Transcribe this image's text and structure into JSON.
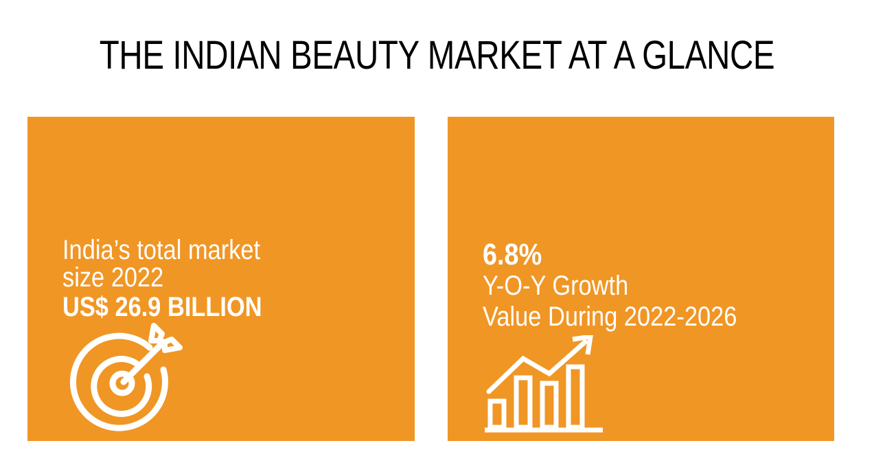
{
  "title": "THE INDIAN BEAUTY MARKET AT A GLANCE",
  "colors": {
    "card_background": "#f09625",
    "card_text": "#ffffff",
    "title_text": "#000000"
  },
  "cards": [
    {
      "line1": "India’s total market",
      "line2": "size 2022",
      "value": "US$ 26.9 BILLION",
      "icon": "target-icon"
    },
    {
      "value": "6.8%",
      "line1": "Y-O-Y Growth",
      "line2": "Value During 2022-2026",
      "icon": "growth-chart-icon"
    }
  ]
}
